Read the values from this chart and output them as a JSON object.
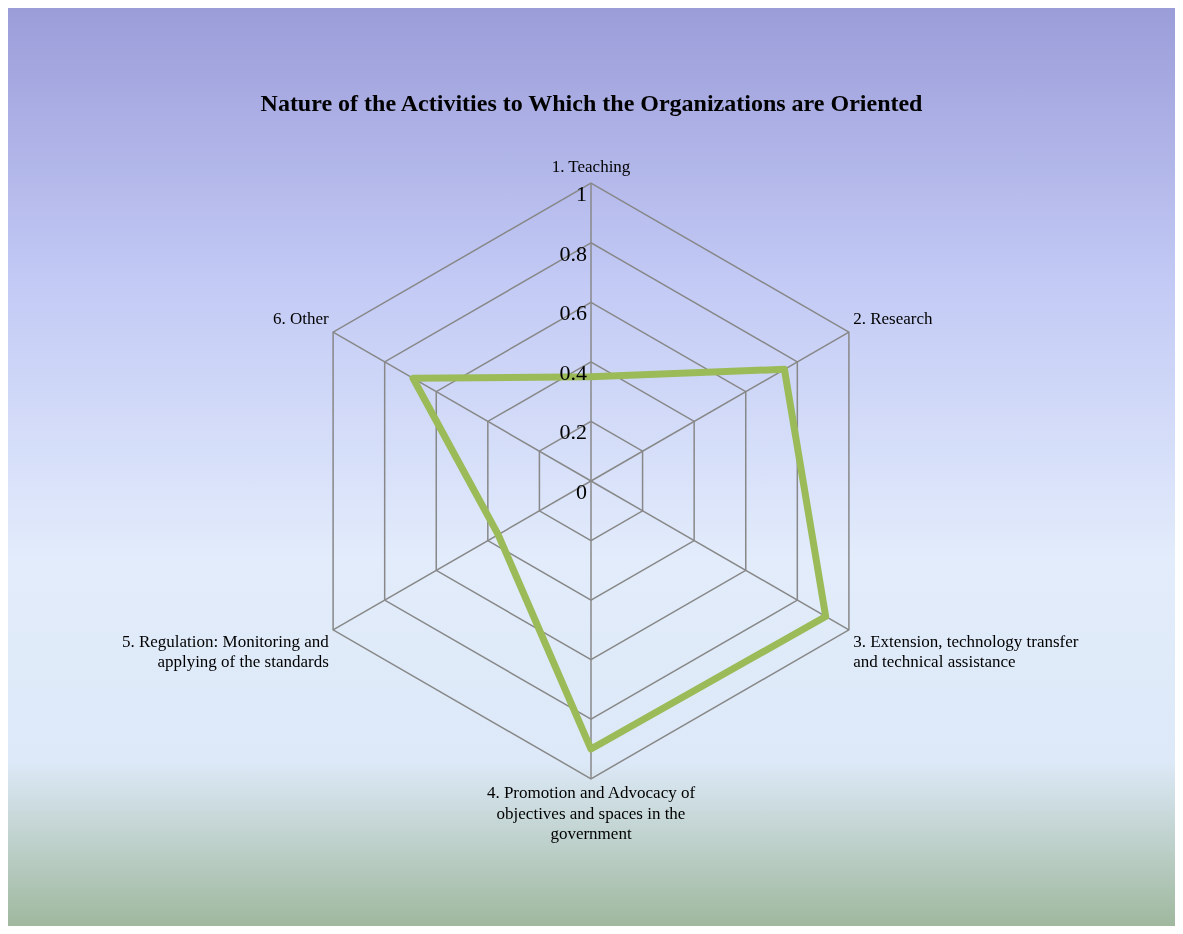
{
  "chart_data": {
    "type": "radar",
    "title": "Nature of the Activities to Which the Organizations are Oriented",
    "categories": [
      "1. Teaching",
      "2. Research",
      "3. Extension, technology transfer and technical assistance",
      "4. Promotion and Advocacy of objectives and spaces in the government",
      "5. Regulation: Monitoring and applying of the standards",
      "6. Other"
    ],
    "series": [
      {
        "color": "#9bbb59",
        "values": [
          0.35,
          0.75,
          0.91,
          0.9,
          0.36,
          0.69
        ]
      }
    ],
    "ylim": [
      0,
      1
    ],
    "yticks": [
      0,
      0.2,
      0.4,
      0.6,
      0.8,
      1
    ],
    "grid": true,
    "legend": false,
    "marker": "none"
  }
}
